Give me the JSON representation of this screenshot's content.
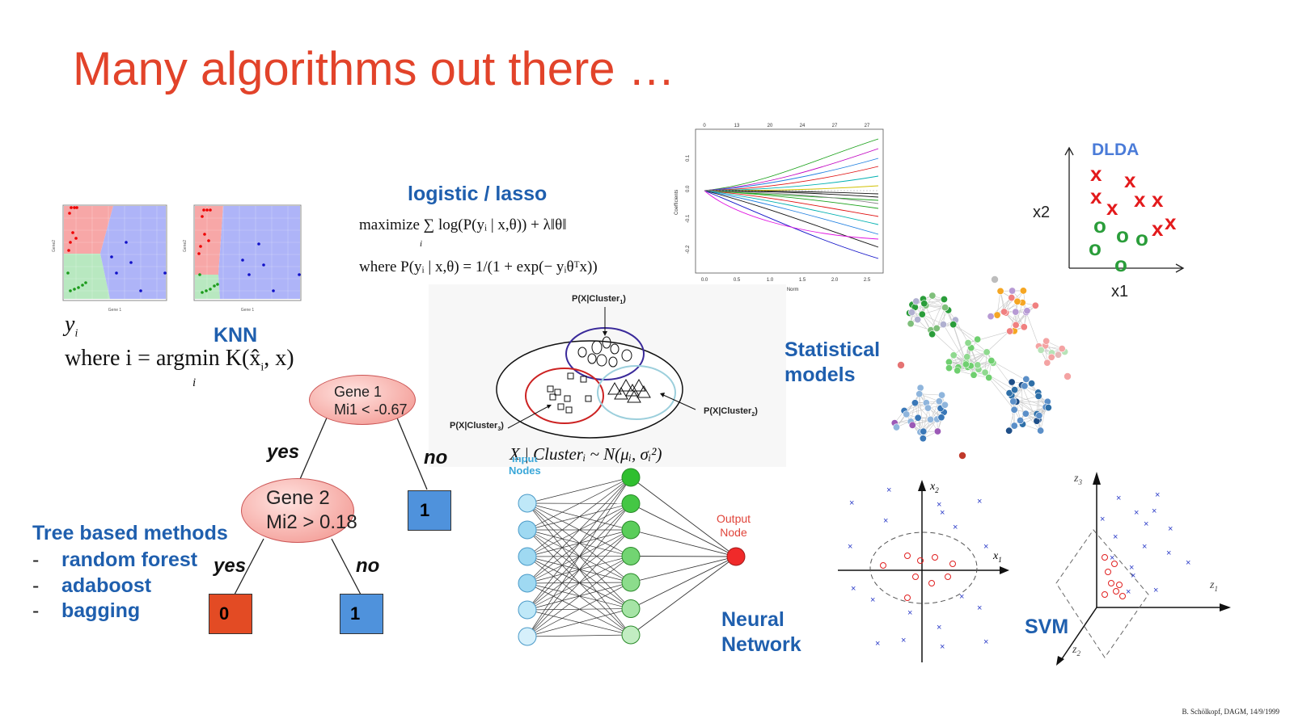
{
  "title": "Many algorithms out there …",
  "knn": {
    "label": "KNN",
    "y_sym": "y",
    "y_sub": "i",
    "where_text": "where i = argmin  K(x̂",
    "where_sub": "i",
    "where_tail": ", x)",
    "argmin_sub": "i",
    "plot_xlabel": "Gene 1",
    "plot_ylabel": "Gene2"
  },
  "logistic": {
    "label": "logistic / lasso",
    "eq1": "maximize ∑ log(P(yᵢ | x,θ)) + λ‖θ‖",
    "eq1_sub": "i",
    "eq2": "where  P(yᵢ | x,θ) = 1/(1 + exp(− yᵢθᵀx))"
  },
  "lasso_plot": {
    "top_ticks": [
      "0",
      "13",
      "20",
      "24",
      "27",
      "27"
    ],
    "x_ticks": [
      "0.0",
      "0.5",
      "1.0",
      "1.5",
      "2.0",
      "2.5"
    ],
    "y_ticks": [
      "0.1",
      "0.0",
      "-0.1",
      "-0.2"
    ],
    "xlabel": "L1 Norm",
    "ylabel": "Coefficients"
  },
  "dlda": {
    "label": "DLDA",
    "x_axis": "x1",
    "y_axis": "x2",
    "x_mark": "x",
    "o_mark": "o"
  },
  "cluster": {
    "c1": "P(X|Cluster",
    "c1_sub": "1",
    "c2": "P(X|Cluster",
    "c2_sub": "2",
    "c3": "P(X|Cluster",
    "c3_sub": "3",
    "close": ")",
    "formula": "X | Clusterᵢ ~ N(μᵢ, σᵢ²)"
  },
  "statistical": {
    "line1": "Statistical",
    "line2": "models"
  },
  "tree": {
    "node1_line1": "Gene 1",
    "node1_line2": "Mi1 < -0.67",
    "node2_line1": "Gene 2",
    "node2_line2": "Mi2 > 0.18",
    "yes": "yes",
    "no": "no",
    "leaf_top": "1",
    "leaf_left": "0",
    "leaf_right": "1",
    "colors": {
      "red_leaf": "#e34b24",
      "blue_leaf": "#4f92dc"
    }
  },
  "tree_methods": {
    "title": "Tree based methods",
    "dash": "-",
    "items": [
      "random forest",
      "adaboost",
      "bagging"
    ]
  },
  "neural": {
    "input_label_1": "Input",
    "input_label_2": "Nodes",
    "output_label_1": "Output",
    "output_label_2": "Node",
    "line1": "Neural",
    "line2": "Network"
  },
  "svm": {
    "label": "SVM",
    "x1": "x",
    "x1_sub": "1",
    "x2": "x",
    "x2_sub": "2",
    "z1": "z",
    "z1_sub": "1",
    "z2": "z",
    "z2_sub": "2",
    "z3": "z",
    "z3_sub": "3"
  },
  "credit": "B. Schölkopf, DAGM, 14/9/1999",
  "colors": {
    "title": "#e2432a",
    "label_blue": "#1f5fae",
    "red": "#e31a1c",
    "green": "#2a9d3a"
  }
}
